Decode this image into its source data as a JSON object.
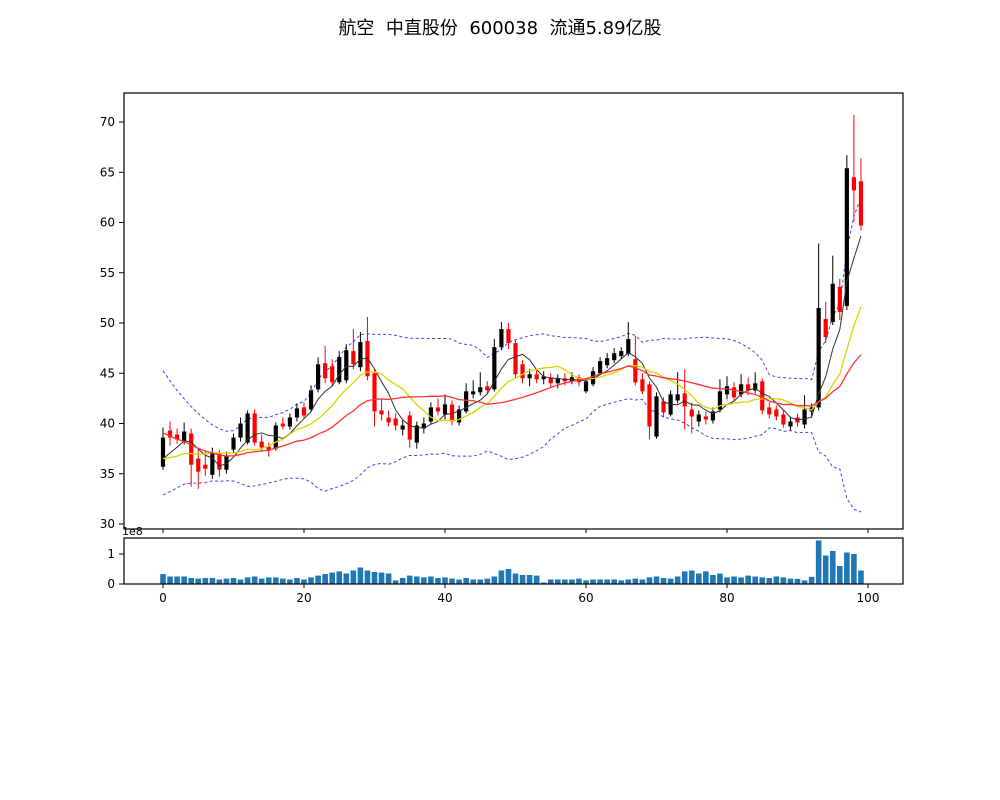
{
  "title": "航空  中直股份  600038  流通5.89亿股",
  "chart_data": {
    "type": "candlestick",
    "title": "航空  中直股份  600038  流通5.89亿股",
    "x_ticks": [
      0,
      20,
      40,
      60,
      80,
      100
    ],
    "price_ticks": [
      30,
      35,
      40,
      45,
      50,
      55,
      60,
      65,
      70
    ],
    "price_range": [
      29.5,
      73.0
    ],
    "x_range": [
      -5.5,
      105
    ],
    "volume_ticks": [
      0,
      1
    ],
    "volume_offset_label": "1e8",
    "grid": false,
    "legend_position": "none",
    "candles": {
      "open": [
        35.7,
        39.3,
        38.9,
        38.2,
        39.0,
        36.5,
        35.9,
        34.9,
        37.0,
        35.4,
        37.4,
        38.6,
        38.1,
        41.0,
        38.2,
        37.7,
        37.5,
        40.0,
        39.7,
        40.6,
        41.6,
        41.4,
        43.4,
        46.0,
        45.7,
        44.1,
        44.3,
        47.2,
        45.6,
        48.2,
        45.0,
        41.3,
        40.6,
        40.5,
        39.4,
        40.8,
        38.1,
        39.5,
        40.2,
        41.6,
        40.9,
        41.9,
        40.1,
        41.2,
        42.9,
        43.1,
        43.7,
        43.4,
        47.6,
        49.4,
        48.0,
        45.9,
        44.5,
        44.9,
        44.4,
        44.6,
        44.0,
        44.5,
        44.2,
        44.6,
        43.2,
        43.9,
        45.0,
        45.8,
        46.3,
        46.7,
        46.9,
        46.4,
        44.4,
        43.9,
        38.7,
        42.2,
        40.9,
        42.3,
        43.0,
        41.4,
        40.2,
        40.7,
        40.3,
        41.4,
        42.9,
        43.6,
        42.9,
        43.9,
        43.3,
        44.2,
        41.6,
        41.4,
        40.9,
        39.7,
        40.6,
        39.9,
        41.2,
        41.6,
        50.4,
        50.1,
        53.6,
        51.7,
        64.5,
        64.1
      ],
      "high": [
        39.6,
        40.2,
        39.5,
        40.1,
        39.5,
        37.4,
        37.2,
        37.6,
        37.4,
        37.2,
        39.0,
        40.6,
        41.3,
        41.4,
        38.9,
        38.1,
        40.1,
        40.6,
        41.0,
        42.0,
        42.1,
        43.8,
        46.6,
        47.7,
        46.4,
        47.2,
        47.9,
        49.4,
        49.1,
        50.6,
        45.4,
        42.4,
        41.3,
        41.0,
        40.4,
        41.2,
        40.2,
        40.6,
        42.1,
        42.5,
        42.9,
        42.3,
        41.8,
        44.0,
        44.3,
        45.1,
        44.2,
        48.4,
        50.1,
        50.0,
        48.3,
        46.3,
        45.4,
        45.3,
        45.2,
        45.0,
        44.9,
        45.0,
        45.1,
        44.9,
        44.5,
        45.6,
        46.6,
        47.0,
        47.5,
        47.6,
        50.1,
        48.7,
        45.0,
        44.2,
        43.1,
        42.6,
        43.3,
        45.1,
        45.4,
        42.1,
        41.3,
        41.2,
        41.6,
        44.4,
        44.7,
        44.1,
        44.9,
        44.6,
        45.1,
        44.5,
        42.1,
        41.8,
        41.3,
        40.7,
        41.0,
        42.8,
        42.0,
        57.9,
        52.1,
        56.7,
        54.4,
        66.7,
        70.7,
        66.4
      ],
      "low": [
        35.4,
        37.8,
        38.0,
        37.9,
        33.7,
        33.5,
        34.8,
        34.5,
        34.7,
        35.0,
        37.0,
        38.2,
        37.9,
        37.8,
        37.3,
        36.7,
        37.3,
        39.4,
        39.4,
        40.2,
        40.5,
        41.2,
        43.1,
        44.0,
        43.8,
        43.9,
        44.0,
        45.4,
        45.2,
        44.3,
        39.7,
        40.3,
        39.7,
        39.3,
        38.8,
        37.6,
        37.5,
        39.0,
        39.9,
        40.8,
        40.4,
        39.8,
        39.8,
        41.0,
        42.5,
        42.8,
        42.9,
        43.2,
        47.3,
        47.4,
        44.5,
        44.0,
        43.7,
        44.0,
        43.9,
        43.6,
        43.5,
        43.8,
        43.9,
        43.7,
        43.0,
        43.7,
        44.8,
        45.5,
        46.0,
        46.4,
        46.7,
        43.8,
        42.9,
        38.4,
        38.5,
        40.6,
        40.7,
        42.0,
        39.4,
        39.0,
        39.7,
        39.9,
        40.0,
        41.1,
        42.4,
        42.2,
        42.6,
        42.8,
        43.0,
        40.9,
        40.5,
        40.3,
        39.6,
        39.3,
        39.7,
        39.5,
        40.6,
        41.3,
        48.0,
        49.8,
        50.3,
        51.3,
        60.1,
        59.2
      ],
      "close": [
        38.6,
        38.6,
        38.4,
        39.2,
        35.9,
        35.2,
        35.5,
        37.0,
        35.4,
        36.8,
        38.6,
        40.0,
        41.0,
        38.1,
        37.6,
        37.3,
        39.8,
        39.7,
        40.6,
        41.5,
        40.8,
        43.3,
        45.9,
        44.5,
        44.1,
        46.6,
        47.3,
        45.9,
        48.1,
        44.7,
        41.2,
        40.9,
        40.1,
        39.8,
        39.8,
        38.4,
        39.8,
        40.0,
        41.6,
        41.2,
        41.9,
        40.2,
        41.4,
        43.2,
        43.2,
        43.6,
        43.3,
        47.6,
        49.4,
        48.0,
        44.9,
        44.5,
        44.9,
        44.4,
        44.7,
        44.0,
        44.5,
        44.2,
        44.6,
        44.1,
        44.2,
        45.2,
        46.2,
        46.5,
        47.0,
        47.2,
        48.4,
        44.1,
        43.2,
        39.7,
        42.7,
        41.1,
        42.9,
        42.9,
        41.7,
        40.7,
        40.9,
        40.4,
        41.2,
        43.2,
        43.7,
        42.6,
        43.9,
        43.3,
        44.0,
        41.3,
        40.9,
        40.7,
        39.9,
        40.2,
        40.1,
        41.4,
        41.6,
        51.5,
        48.6,
        53.9,
        51.1,
        65.4,
        63.2,
        59.7
      ]
    },
    "volume_1e8": [
      0.33,
      0.25,
      0.25,
      0.25,
      0.2,
      0.18,
      0.2,
      0.2,
      0.15,
      0.18,
      0.2,
      0.15,
      0.22,
      0.25,
      0.18,
      0.22,
      0.22,
      0.18,
      0.15,
      0.2,
      0.15,
      0.22,
      0.28,
      0.33,
      0.38,
      0.42,
      0.35,
      0.45,
      0.55,
      0.45,
      0.4,
      0.38,
      0.35,
      0.12,
      0.2,
      0.28,
      0.25,
      0.22,
      0.25,
      0.2,
      0.22,
      0.18,
      0.15,
      0.2,
      0.15,
      0.15,
      0.18,
      0.25,
      0.45,
      0.5,
      0.35,
      0.3,
      0.3,
      0.28,
      0.05,
      0.15,
      0.15,
      0.15,
      0.15,
      0.18,
      0.12,
      0.15,
      0.15,
      0.15,
      0.15,
      0.12,
      0.15,
      0.18,
      0.15,
      0.22,
      0.25,
      0.2,
      0.18,
      0.25,
      0.42,
      0.45,
      0.35,
      0.42,
      0.3,
      0.35,
      0.22,
      0.25,
      0.22,
      0.28,
      0.25,
      0.22,
      0.2,
      0.25,
      0.22,
      0.18,
      0.17,
      0.12,
      0.24,
      1.45,
      0.95,
      1.1,
      0.6,
      1.05,
      1.0,
      0.45
    ],
    "overlays": {
      "moving_averages": [
        {
          "window": 5,
          "color": "#303030"
        },
        {
          "window": 10,
          "color": "#d6d600"
        },
        {
          "window": 20,
          "color": "#ff3333"
        }
      ],
      "bollinger": {
        "window": 20,
        "k": 2,
        "color": "#4444ee",
        "style": "dashed"
      },
      "seed_closes": [
        45.8,
        45.2,
        44.4,
        43.6,
        42.8,
        42.0,
        41.2,
        40.4,
        39.6,
        38.8,
        38.2,
        37.6,
        37.0,
        36.5,
        36.0,
        35.7,
        35.5,
        35.6,
        36.0,
        36.6
      ]
    },
    "colors": {
      "up": "#000000",
      "down": "#ff0000",
      "volume_bar": "#1f77b4",
      "background": "#ffffff",
      "axis": "#000000"
    }
  }
}
